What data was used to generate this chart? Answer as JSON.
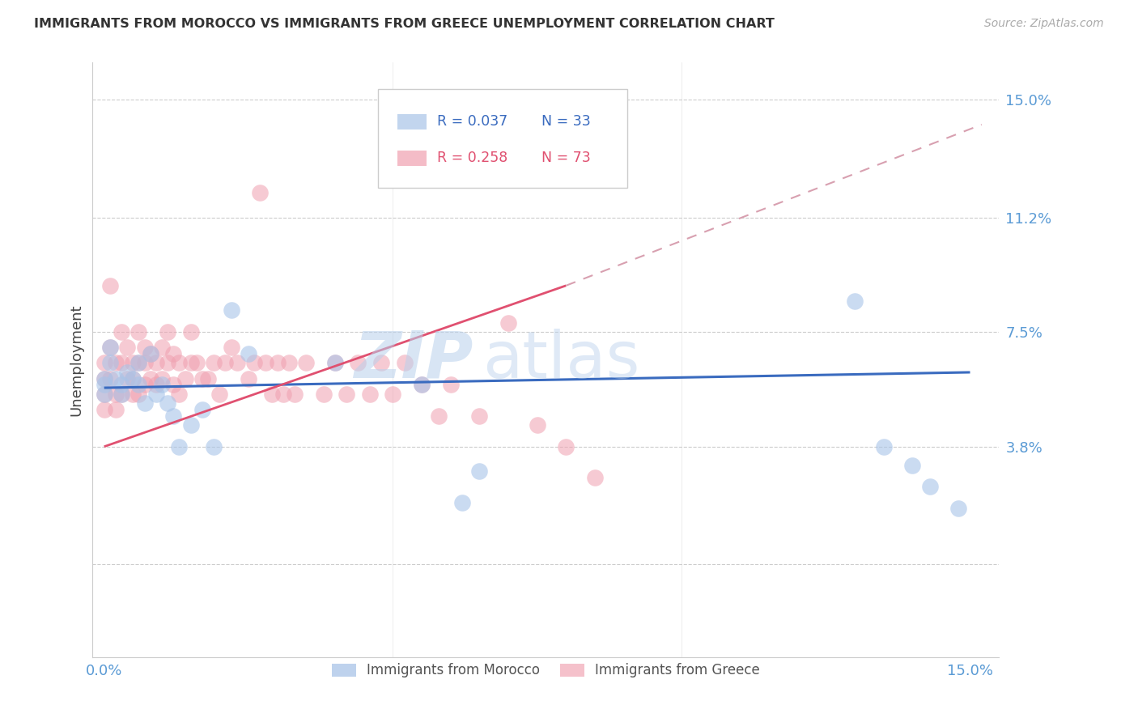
{
  "title": "IMMIGRANTS FROM MOROCCO VS IMMIGRANTS FROM GREECE UNEMPLOYMENT CORRELATION CHART",
  "source": "Source: ZipAtlas.com",
  "ylabel": "Unemployment",
  "ytick_vals": [
    0.0,
    0.038,
    0.075,
    0.112,
    0.15
  ],
  "ytick_labels": [
    "",
    "3.8%",
    "7.5%",
    "11.2%",
    "15.0%"
  ],
  "xlim": [
    0.0,
    0.15
  ],
  "ylim_lo": -0.03,
  "ylim_hi": 0.162,
  "xtick_labels": [
    "0.0%",
    "15.0%"
  ],
  "legend1_r": "R = 0.037",
  "legend1_n": "N = 33",
  "legend2_r": "R = 0.258",
  "legend2_n": "N = 73",
  "color_morocco": "#a8c4e8",
  "color_greece": "#f0a0b0",
  "color_trendline_morocco": "#3a6bbf",
  "color_trendline_greece": "#e05070",
  "watermark_zip": "ZIP",
  "watermark_atlas": "atlas",
  "morocco_x": [
    0.0,
    0.0,
    0.0,
    0.001,
    0.001,
    0.002,
    0.003,
    0.003,
    0.004,
    0.005,
    0.006,
    0.006,
    0.007,
    0.008,
    0.009,
    0.01,
    0.011,
    0.012,
    0.013,
    0.015,
    0.017,
    0.019,
    0.022,
    0.025,
    0.04,
    0.055,
    0.062,
    0.065,
    0.13,
    0.135,
    0.14,
    0.143,
    0.148
  ],
  "morocco_y": [
    0.058,
    0.055,
    0.06,
    0.065,
    0.07,
    0.06,
    0.058,
    0.055,
    0.062,
    0.06,
    0.065,
    0.058,
    0.052,
    0.068,
    0.055,
    0.058,
    0.052,
    0.048,
    0.038,
    0.045,
    0.05,
    0.038,
    0.082,
    0.068,
    0.065,
    0.058,
    0.02,
    0.03,
    0.085,
    0.038,
    0.032,
    0.025,
    0.018
  ],
  "greece_x": [
    0.0,
    0.0,
    0.0,
    0.0,
    0.001,
    0.001,
    0.001,
    0.002,
    0.002,
    0.002,
    0.003,
    0.003,
    0.003,
    0.004,
    0.004,
    0.005,
    0.005,
    0.005,
    0.006,
    0.006,
    0.006,
    0.007,
    0.007,
    0.007,
    0.008,
    0.008,
    0.009,
    0.009,
    0.01,
    0.01,
    0.011,
    0.011,
    0.012,
    0.012,
    0.013,
    0.013,
    0.014,
    0.015,
    0.015,
    0.016,
    0.017,
    0.018,
    0.019,
    0.02,
    0.021,
    0.022,
    0.023,
    0.025,
    0.026,
    0.027,
    0.028,
    0.029,
    0.03,
    0.031,
    0.032,
    0.033,
    0.035,
    0.038,
    0.04,
    0.042,
    0.044,
    0.046,
    0.048,
    0.05,
    0.052,
    0.055,
    0.058,
    0.06,
    0.065,
    0.07,
    0.075,
    0.08,
    0.085
  ],
  "greece_y": [
    0.065,
    0.06,
    0.055,
    0.05,
    0.09,
    0.07,
    0.06,
    0.065,
    0.055,
    0.05,
    0.075,
    0.065,
    0.055,
    0.07,
    0.06,
    0.065,
    0.06,
    0.055,
    0.075,
    0.065,
    0.055,
    0.07,
    0.065,
    0.058,
    0.068,
    0.06,
    0.065,
    0.058,
    0.07,
    0.06,
    0.075,
    0.065,
    0.068,
    0.058,
    0.065,
    0.055,
    0.06,
    0.075,
    0.065,
    0.065,
    0.06,
    0.06,
    0.065,
    0.055,
    0.065,
    0.07,
    0.065,
    0.06,
    0.065,
    0.12,
    0.065,
    0.055,
    0.065,
    0.055,
    0.065,
    0.055,
    0.065,
    0.055,
    0.065,
    0.055,
    0.065,
    0.055,
    0.065,
    0.055,
    0.065,
    0.058,
    0.048,
    0.058,
    0.048,
    0.078,
    0.045,
    0.038,
    0.028
  ]
}
